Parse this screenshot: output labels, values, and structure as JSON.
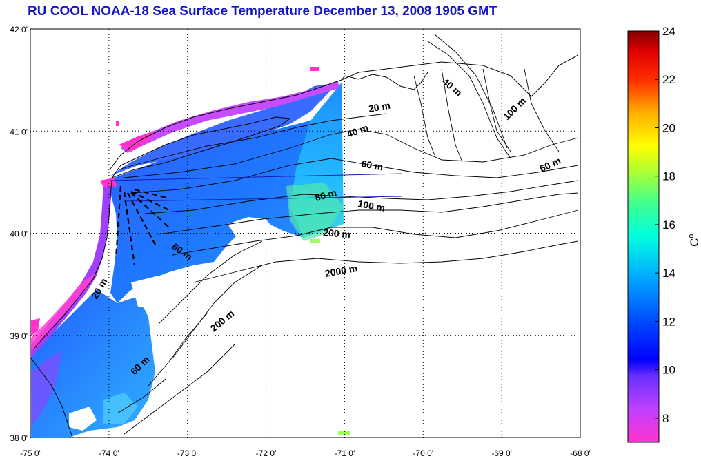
{
  "title": "RU COOL  NOAA-18 Sea Surface Temperature December 13, 2008 1905 GMT",
  "map": {
    "lon_ticks": [
      "-75 0'",
      "-74 0'",
      "-73 0'",
      "-72 0'",
      "-71 0'",
      "-70 0'",
      "-69 0'",
      "-68 0'"
    ],
    "lat_ticks": [
      "42 0'",
      "41 0'",
      "40 0'",
      "39 0'",
      "38 0'"
    ],
    "lon_range": [
      -75,
      -68
    ],
    "lat_range": [
      38,
      42
    ],
    "grid": "dotted",
    "bathymetry_labels": [
      "40 m",
      "20 m",
      "100 m",
      "40 m",
      "60 m",
      "60 m",
      "80 m",
      "100 m",
      "200 m",
      "60 m",
      "2000 m",
      "20 m",
      "200 m",
      "60 m"
    ]
  },
  "colorbar": {
    "ticks": [
      "24",
      "22",
      "20",
      "18",
      "16",
      "14",
      "12",
      "10",
      "8"
    ],
    "range": [
      7,
      24
    ],
    "unit": "C",
    "unit_superscript": "o",
    "colormap": "jet-with-magenta-low"
  }
}
